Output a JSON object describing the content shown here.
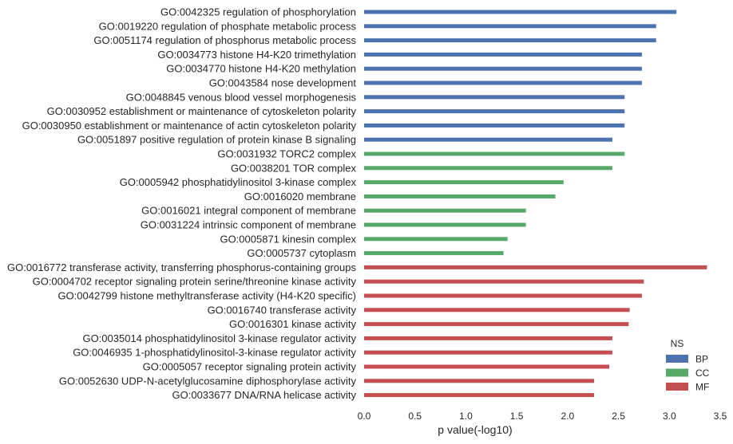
{
  "chart_data": {
    "type": "bar",
    "orientation": "horizontal",
    "xlabel": "p value(-log10)",
    "xlim": [
      0,
      3.5
    ],
    "xticks": [
      "0.0",
      "0.5",
      "1.0",
      "1.5",
      "2.0",
      "2.5",
      "3.0",
      "3.5"
    ],
    "grid": false,
    "legend": {
      "title": "NS",
      "placement": "bottom-right",
      "entries": [
        {
          "name": "BP",
          "color": "#4c72b0"
        },
        {
          "name": "CC",
          "color": "#55a868"
        },
        {
          "name": "MF",
          "color": "#c44e52"
        }
      ]
    },
    "bars": [
      {
        "label": "GO:0042325 regulation of phosphorylation",
        "value": 3.07,
        "group": "BP"
      },
      {
        "label": "GO:0019220 regulation of phosphate metabolic process",
        "value": 2.87,
        "group": "BP"
      },
      {
        "label": "GO:0051174 regulation of phosphorus metabolic process",
        "value": 2.87,
        "group": "BP"
      },
      {
        "label": "GO:0034773 histone H4-K20 trimethylation",
        "value": 2.73,
        "group": "BP"
      },
      {
        "label": "GO:0034770 histone H4-K20 methylation",
        "value": 2.73,
        "group": "BP"
      },
      {
        "label": "GO:0043584 nose development",
        "value": 2.73,
        "group": "BP"
      },
      {
        "label": "GO:0048845 venous blood vessel morphogenesis",
        "value": 2.56,
        "group": "BP"
      },
      {
        "label": "GO:0030952 establishment or maintenance of cytoskeleton polarity",
        "value": 2.56,
        "group": "BP"
      },
      {
        "label": "GO:0030950 establishment or maintenance of actin cytoskeleton polarity",
        "value": 2.56,
        "group": "BP"
      },
      {
        "label": "GO:0051897 positive regulation of protein kinase B signaling",
        "value": 2.44,
        "group": "BP"
      },
      {
        "label": "GO:0031932 TORC2 complex",
        "value": 2.56,
        "group": "CC"
      },
      {
        "label": "GO:0038201 TOR complex",
        "value": 2.44,
        "group": "CC"
      },
      {
        "label": "GO:0005942 phosphatidylinositol 3-kinase complex",
        "value": 1.96,
        "group": "CC"
      },
      {
        "label": "GO:0016020 membrane",
        "value": 1.88,
        "group": "CC"
      },
      {
        "label": "GO:0016021 integral component of membrane",
        "value": 1.59,
        "group": "CC"
      },
      {
        "label": "GO:0031224 intrinsic component of membrane",
        "value": 1.59,
        "group": "CC"
      },
      {
        "label": "GO:0005871 kinesin complex",
        "value": 1.41,
        "group": "CC"
      },
      {
        "label": "GO:0005737 cytoplasm",
        "value": 1.37,
        "group": "CC"
      },
      {
        "label": "GO:0016772 transferase activity, transferring phosphorus-containing groups",
        "value": 3.37,
        "group": "MF"
      },
      {
        "label": "GO:0004702 receptor signaling protein serine/threonine kinase activity",
        "value": 2.75,
        "group": "MF"
      },
      {
        "label": "GO:0042799 histone methyltransferase activity (H4-K20 specific)",
        "value": 2.73,
        "group": "MF"
      },
      {
        "label": "GO:0016740 transferase activity",
        "value": 2.61,
        "group": "MF"
      },
      {
        "label": "GO:0016301 kinase activity",
        "value": 2.6,
        "group": "MF"
      },
      {
        "label": "GO:0035014 phosphatidylinositol 3-kinase regulator activity",
        "value": 2.44,
        "group": "MF"
      },
      {
        "label": "GO:0046935 1-phosphatidylinositol-3-kinase regulator activity",
        "value": 2.44,
        "group": "MF"
      },
      {
        "label": "GO:0005057 receptor signaling protein activity",
        "value": 2.41,
        "group": "MF"
      },
      {
        "label": "GO:0052630 UDP-N-acetylglucosamine diphosphorylase activity",
        "value": 2.26,
        "group": "MF"
      },
      {
        "label": "GO:0033677 DNA/RNA helicase activity",
        "value": 2.26,
        "group": "MF"
      }
    ]
  }
}
